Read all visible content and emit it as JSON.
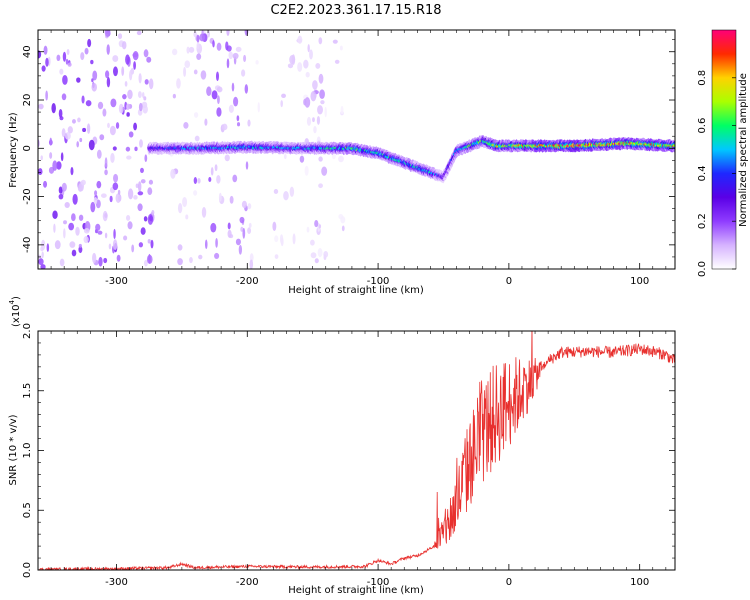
{
  "title": "C2E2.2023.361.17.15.R18",
  "chart_data": [
    {
      "type": "heatmap",
      "xlabel": "Height of straight line (km)",
      "ylabel": "Frequency (Hz)",
      "xlim": [
        -360,
        127
      ],
      "ylim": [
        -50,
        49
      ],
      "xticks": [
        -300,
        -200,
        -100,
        0,
        100
      ],
      "yticks": [
        -40,
        -20,
        0,
        20,
        40
      ],
      "colorbar": {
        "label": "Normalized spectral amplitude",
        "range": [
          0,
          1
        ],
        "ticks": [
          "0.0",
          "0.2",
          "0.4",
          "0.6",
          "0.8"
        ],
        "colors": [
          "#ffffff",
          "#d6b3ff",
          "#8f3cff",
          "#5a00e6",
          "#1e28ff",
          "#00c8ff",
          "#00ff64",
          "#aaff00",
          "#ffd200",
          "#ff2a00",
          "#ff0078"
        ]
      },
      "ridge": {
        "x": [
          -275,
          -240,
          -200,
          -160,
          -120,
          -100,
          -80,
          -60,
          -50,
          -40,
          -30,
          -20,
          -10,
          0,
          50,
          90,
          127
        ],
        "freq": [
          0,
          0,
          0.5,
          0,
          0,
          -2,
          -6,
          -10,
          -12,
          -1,
          1,
          3,
          1,
          1,
          1,
          2,
          1
        ],
        "amplitude": [
          0.35,
          0.45,
          0.5,
          0.45,
          0.6,
          0.55,
          0.55,
          0.5,
          0.3,
          0.5,
          0.6,
          0.6,
          0.75,
          0.7,
          0.95,
          0.85,
          0.8
        ]
      },
      "noise_bands": [
        {
          "x": [
            -360,
            -272
          ],
          "level": 0.6
        },
        {
          "x": [
            -258,
            -235
          ],
          "level": 0.25
        },
        {
          "x": [
            -240,
            -200
          ],
          "level": 0.45
        },
        {
          "x": [
            -200,
            -190
          ],
          "level": 0.2
        },
        {
          "x": [
            -180,
            -125
          ],
          "level": 0.2
        },
        {
          "x": [
            -160,
            -140
          ],
          "level": 0.35
        }
      ]
    },
    {
      "type": "line",
      "xlabel": "Height of straight line (km)",
      "ylabel": "SNR (10 * v/v)",
      "y_multiplier": "(x10",
      "y_multiplier_exp": "4",
      "y_multiplier_close": ")",
      "xlim": [
        -360,
        127
      ],
      "ylim": [
        0,
        2.0
      ],
      "xticks": [
        -300,
        -200,
        -100,
        0,
        100
      ],
      "yticks": [
        "0.0",
        "0.5",
        "1.0",
        "1.5",
        "2.0"
      ],
      "color": "#e8302e",
      "series": [
        {
          "x": [
            -360,
            -300,
            -260,
            -250,
            -240,
            -200,
            -150,
            -110,
            -100,
            -90,
            -80,
            -70,
            -60,
            -50,
            -40,
            -30,
            -20,
            -10,
            0,
            10,
            20,
            30,
            40,
            60,
            80,
            100,
            110,
            120,
            127
          ],
          "values": [
            0.005,
            0.01,
            0.02,
            0.05,
            0.02,
            0.03,
            0.025,
            0.03,
            0.08,
            0.05,
            0.1,
            0.12,
            0.18,
            0.3,
            0.55,
            0.9,
            1.15,
            1.3,
            1.4,
            1.5,
            1.62,
            1.75,
            1.82,
            1.83,
            1.82,
            1.85,
            1.83,
            1.8,
            1.75
          ]
        }
      ]
    }
  ]
}
